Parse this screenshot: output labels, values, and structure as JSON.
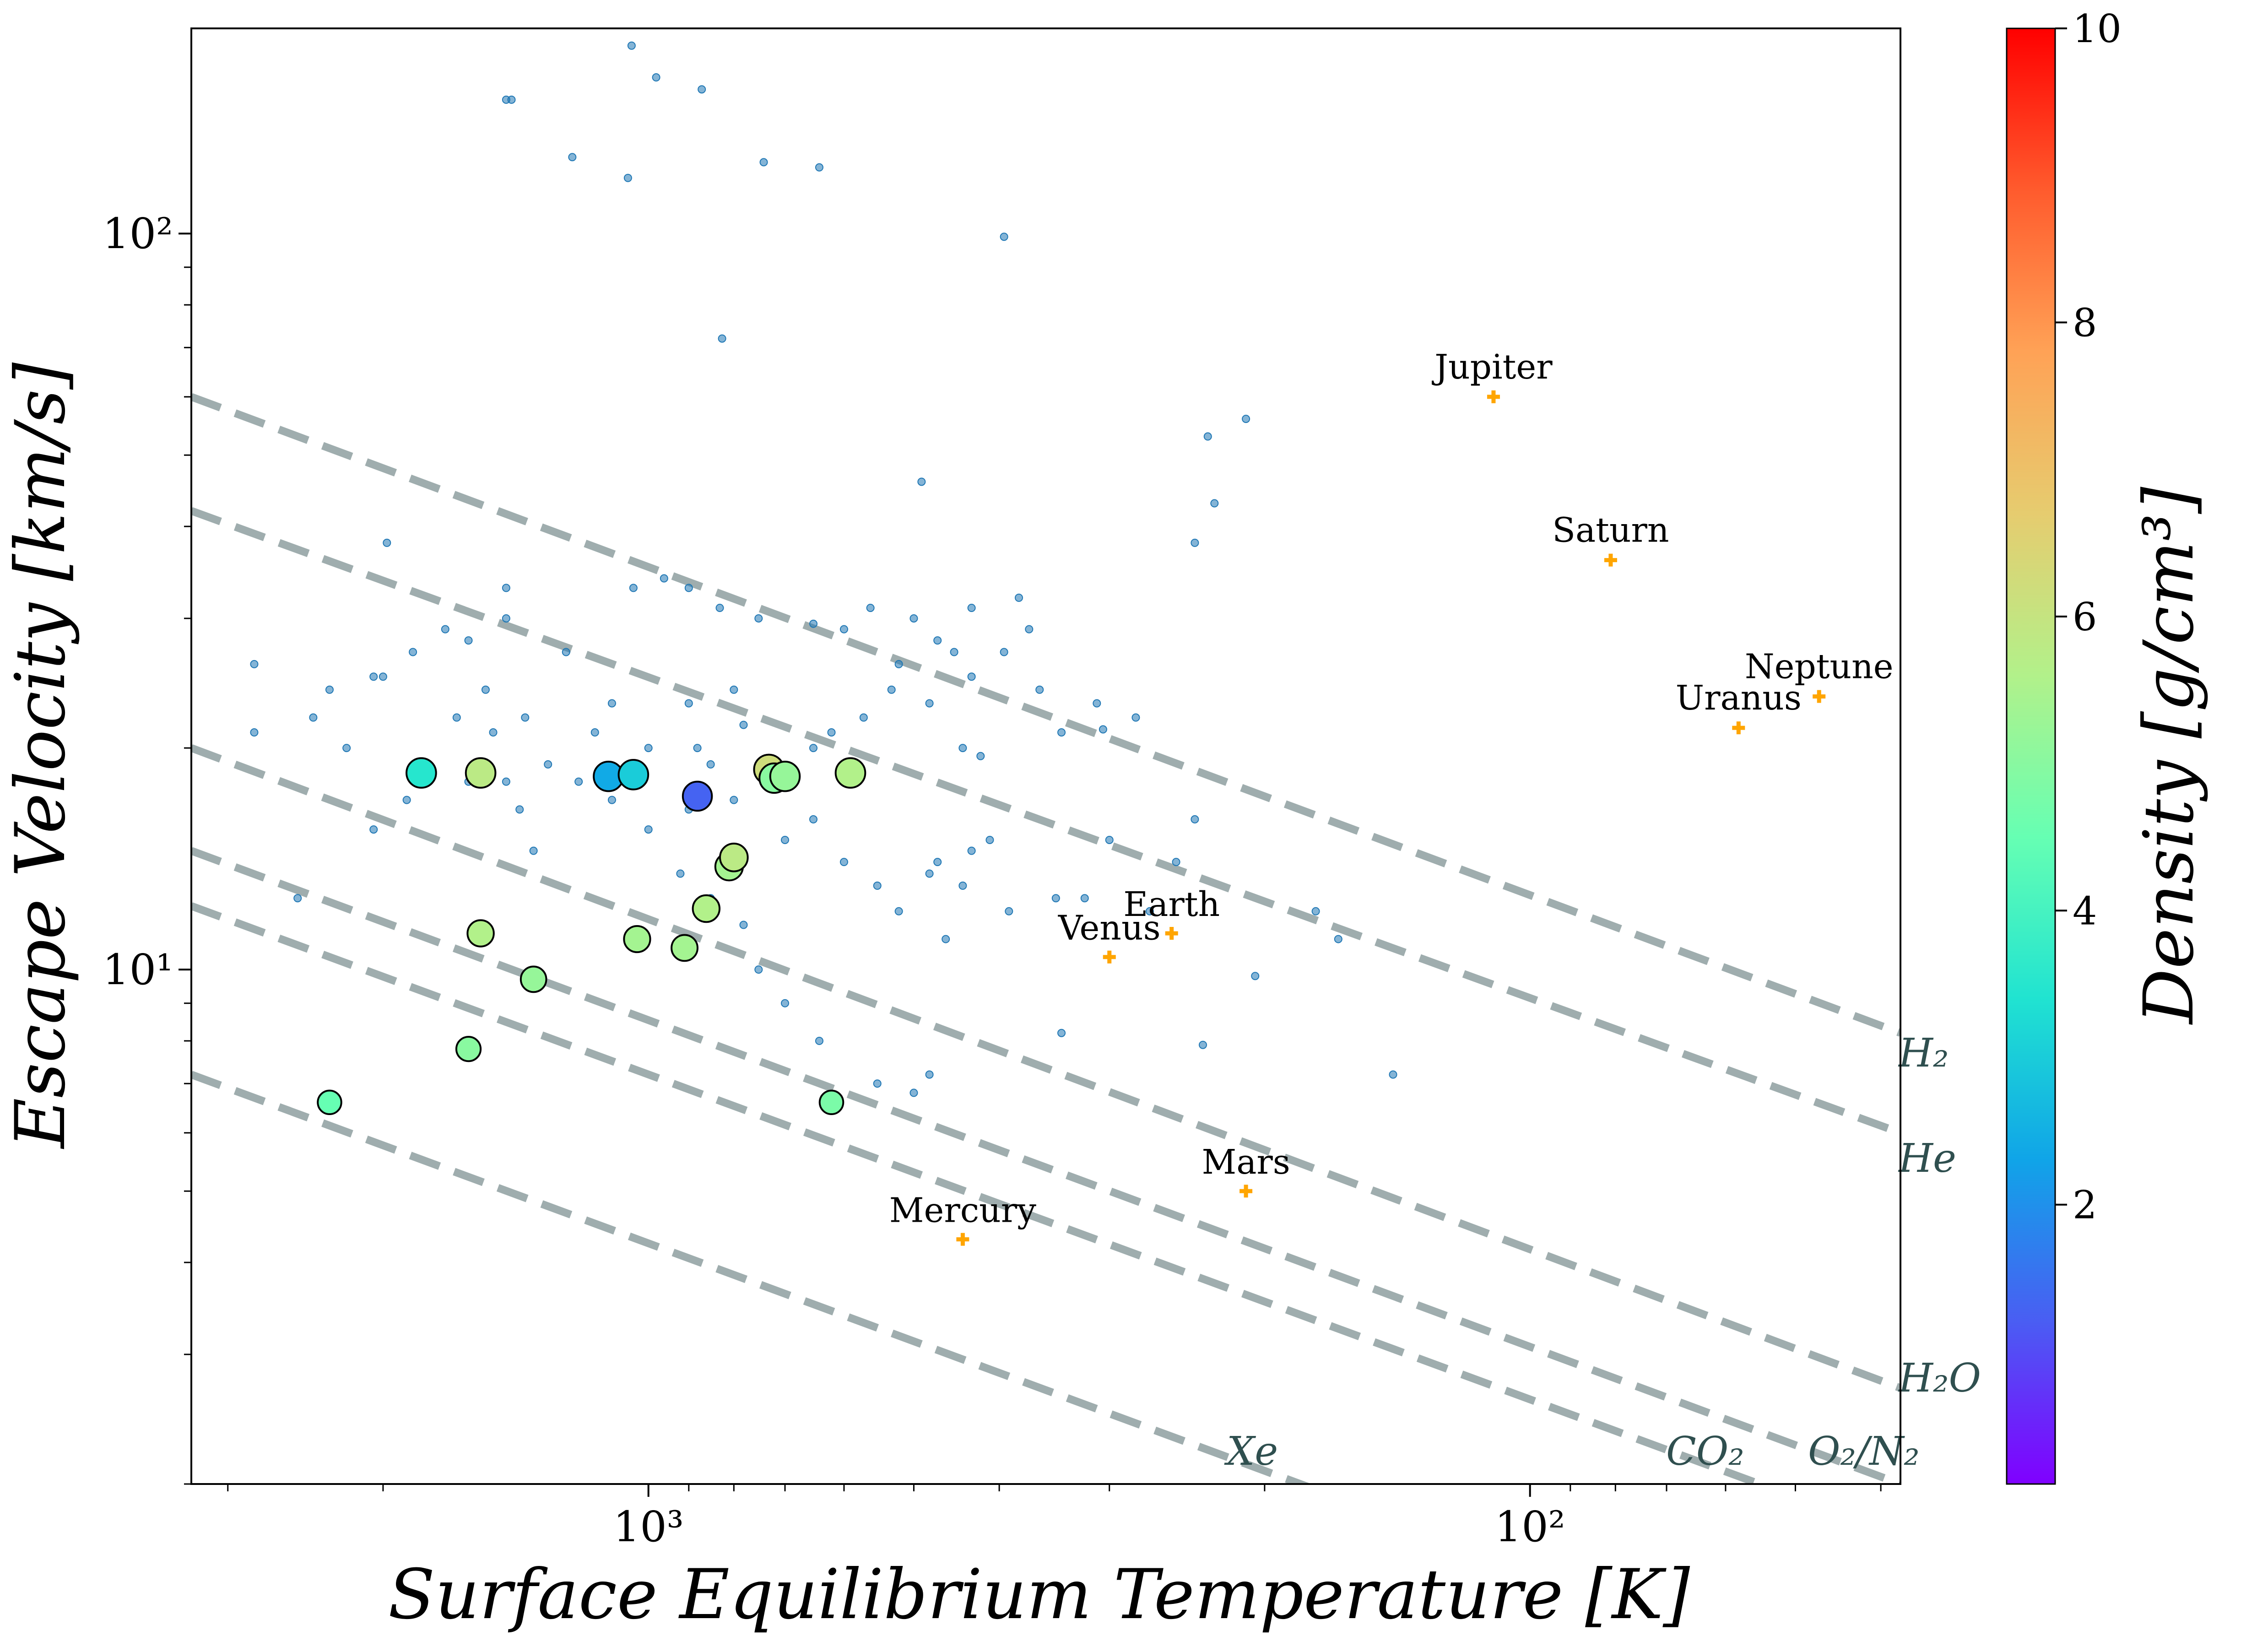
{
  "chart_data": {
    "type": "scatter",
    "xscale": "log",
    "yscale": "log",
    "x_inverted": true,
    "xlim": [
      3300,
      38
    ],
    "ylim": [
      2,
      190
    ],
    "xlabel": "Surface Equilibrium Temperature [K]",
    "ylabel": "Escape Velocity [km/s]",
    "x_ticks": [
      {
        "value": 1000,
        "label": "10³"
      },
      {
        "value": 100,
        "label": "10²"
      }
    ],
    "y_ticks": [
      {
        "value": 10,
        "label": "10¹"
      },
      {
        "value": 100,
        "label": "10²"
      }
    ],
    "colorbar": {
      "label": "Density [g/cm³]",
      "range": [
        0.1,
        10
      ],
      "ticks": [
        {
          "value": 2,
          "label": "2"
        },
        {
          "value": 4,
          "label": "4"
        },
        {
          "value": 6,
          "label": "6"
        },
        {
          "value": 8,
          "label": "8"
        },
        {
          "value": 10,
          "label": "10"
        }
      ],
      "colormap_stops": [
        "#8000ff",
        "#4a5df3",
        "#10a4e8",
        "#20e3d1",
        "#66ffb3",
        "#b2f18a",
        "#e6cc6f",
        "#ffa256",
        "#ff5b2d",
        "#ff0000"
      ]
    },
    "grid": false,
    "retention_lines": {
      "color": "#95a5a6",
      "style": "dashed",
      "series": [
        {
          "name": "H₂",
          "x": [
            3300,
            38
          ],
          "y": [
            60,
            8.2
          ]
        },
        {
          "name": "He",
          "x": [
            3300,
            38
          ],
          "y": [
            42,
            6
          ]
        },
        {
          "name": "H₂O",
          "x": [
            3300,
            38
          ],
          "y": [
            20,
            2.7
          ]
        },
        {
          "name": "CO₂",
          "x": [
            3300,
            38
          ],
          "y": [
            14.5,
            2
          ]
        },
        {
          "name": "O₂/N₂",
          "x": [
            3300,
            38
          ],
          "y": [
            12.2,
            1.7
          ]
        },
        {
          "name": "Xe",
          "x": [
            3300,
            38
          ],
          "y": [
            7.2,
            1
          ]
        }
      ]
    },
    "solar_system": {
      "color": "#ffa500",
      "marker": "plus",
      "points": [
        {
          "name": "Mercury",
          "x": 440,
          "y": 4.3
        },
        {
          "name": "Venus",
          "x": 300,
          "y": 10.4
        },
        {
          "name": "Earth",
          "x": 255,
          "y": 11.2
        },
        {
          "name": "Mars",
          "x": 210,
          "y": 5.0
        },
        {
          "name": "Jupiter",
          "x": 110,
          "y": 60
        },
        {
          "name": "Saturn",
          "x": 81,
          "y": 36
        },
        {
          "name": "Uranus",
          "x": 58,
          "y": 21.3
        },
        {
          "name": "Neptune",
          "x": 47,
          "y": 23.5
        }
      ]
    },
    "exoplanets_small": {
      "color": "#1f77b4",
      "points": [
        {
          "x": 1450,
          "y": 152
        },
        {
          "x": 1430,
          "y": 152
        },
        {
          "x": 1045,
          "y": 180
        },
        {
          "x": 980,
          "y": 163
        },
        {
          "x": 870,
          "y": 157
        },
        {
          "x": 1220,
          "y": 127
        },
        {
          "x": 1055,
          "y": 119
        },
        {
          "x": 740,
          "y": 125
        },
        {
          "x": 640,
          "y": 123
        },
        {
          "x": 395,
          "y": 99
        },
        {
          "x": 825,
          "y": 72
        },
        {
          "x": 210,
          "y": 56
        },
        {
          "x": 232,
          "y": 53
        },
        {
          "x": 228,
          "y": 43
        },
        {
          "x": 240,
          "y": 38
        },
        {
          "x": 490,
          "y": 46
        },
        {
          "x": 1980,
          "y": 38
        },
        {
          "x": 1040,
          "y": 33
        },
        {
          "x": 1450,
          "y": 33
        },
        {
          "x": 1240,
          "y": 27
        },
        {
          "x": 1700,
          "y": 29
        },
        {
          "x": 2800,
          "y": 26
        },
        {
          "x": 2800,
          "y": 21
        },
        {
          "x": 2400,
          "y": 22
        },
        {
          "x": 2000,
          "y": 25
        },
        {
          "x": 1530,
          "y": 24
        },
        {
          "x": 1380,
          "y": 22
        },
        {
          "x": 1300,
          "y": 19
        },
        {
          "x": 1150,
          "y": 21
        },
        {
          "x": 1100,
          "y": 23
        },
        {
          "x": 900,
          "y": 23
        },
        {
          "x": 800,
          "y": 24
        },
        {
          "x": 880,
          "y": 20
        },
        {
          "x": 1000,
          "y": 20
        },
        {
          "x": 1050,
          "y": 19
        },
        {
          "x": 850,
          "y": 19
        },
        {
          "x": 780,
          "y": 21.5
        },
        {
          "x": 700,
          "y": 18
        },
        {
          "x": 650,
          "y": 20
        },
        {
          "x": 620,
          "y": 21
        },
        {
          "x": 600,
          "y": 19
        },
        {
          "x": 570,
          "y": 22
        },
        {
          "x": 530,
          "y": 24
        },
        {
          "x": 520,
          "y": 26
        },
        {
          "x": 500,
          "y": 30
        },
        {
          "x": 470,
          "y": 28
        },
        {
          "x": 450,
          "y": 27
        },
        {
          "x": 430,
          "y": 25
        },
        {
          "x": 480,
          "y": 23
        },
        {
          "x": 440,
          "y": 20
        },
        {
          "x": 420,
          "y": 19.5
        },
        {
          "x": 360,
          "y": 24
        },
        {
          "x": 340,
          "y": 21
        },
        {
          "x": 310,
          "y": 23
        },
        {
          "x": 305,
          "y": 21.2
        },
        {
          "x": 280,
          "y": 22
        },
        {
          "x": 370,
          "y": 29
        },
        {
          "x": 395,
          "y": 27
        },
        {
          "x": 430,
          "y": 31
        },
        {
          "x": 380,
          "y": 32
        },
        {
          "x": 560,
          "y": 31
        },
        {
          "x": 600,
          "y": 29
        },
        {
          "x": 650,
          "y": 29.5
        },
        {
          "x": 750,
          "y": 30
        },
        {
          "x": 830,
          "y": 31
        },
        {
          "x": 900,
          "y": 33
        },
        {
          "x": 960,
          "y": 34
        },
        {
          "x": 1450,
          "y": 30
        },
        {
          "x": 1600,
          "y": 28
        },
        {
          "x": 1850,
          "y": 27
        },
        {
          "x": 2050,
          "y": 25
        },
        {
          "x": 2300,
          "y": 24
        },
        {
          "x": 2200,
          "y": 20
        },
        {
          "x": 1880,
          "y": 17
        },
        {
          "x": 1200,
          "y": 18
        },
        {
          "x": 1100,
          "y": 17
        },
        {
          "x": 900,
          "y": 16.5
        },
        {
          "x": 800,
          "y": 17
        },
        {
          "x": 700,
          "y": 15
        },
        {
          "x": 650,
          "y": 16
        },
        {
          "x": 600,
          "y": 14
        },
        {
          "x": 550,
          "y": 13
        },
        {
          "x": 520,
          "y": 12
        },
        {
          "x": 460,
          "y": 11
        },
        {
          "x": 480,
          "y": 13.5
        },
        {
          "x": 470,
          "y": 14
        },
        {
          "x": 430,
          "y": 14.5
        },
        {
          "x": 440,
          "y": 13
        },
        {
          "x": 410,
          "y": 15
        },
        {
          "x": 390,
          "y": 12
        },
        {
          "x": 345,
          "y": 12.5
        },
        {
          "x": 320,
          "y": 12.5
        },
        {
          "x": 300,
          "y": 15
        },
        {
          "x": 270,
          "y": 12
        },
        {
          "x": 252,
          "y": 14
        },
        {
          "x": 240,
          "y": 16
        },
        {
          "x": 1000,
          "y": 15.5
        },
        {
          "x": 920,
          "y": 13.5
        },
        {
          "x": 850,
          "y": 12.5
        },
        {
          "x": 780,
          "y": 11.5
        },
        {
          "x": 750,
          "y": 10
        },
        {
          "x": 700,
          "y": 9
        },
        {
          "x": 640,
          "y": 8
        },
        {
          "x": 550,
          "y": 7
        },
        {
          "x": 500,
          "y": 6.8
        },
        {
          "x": 480,
          "y": 7.2
        },
        {
          "x": 340,
          "y": 8.2
        },
        {
          "x": 235,
          "y": 7.9
        },
        {
          "x": 205,
          "y": 9.8
        },
        {
          "x": 165,
          "y": 11
        },
        {
          "x": 175,
          "y": 12
        },
        {
          "x": 143,
          "y": 7.2
        },
        {
          "x": 2500,
          "y": 12.5
        },
        {
          "x": 2050,
          "y": 15.5
        },
        {
          "x": 1600,
          "y": 18
        },
        {
          "x": 1450,
          "y": 18
        },
        {
          "x": 1500,
          "y": 21
        },
        {
          "x": 1650,
          "y": 22
        },
        {
          "x": 1400,
          "y": 16.5
        },
        {
          "x": 1350,
          "y": 14.5
        }
      ]
    },
    "exoplanets_measured": {
      "points": [
        {
          "x": 2300,
          "y": 6.6,
          "density": 4.5
        },
        {
          "x": 1600,
          "y": 7.8,
          "density": 5.0
        },
        {
          "x": 1550,
          "y": 11.2,
          "density": 5.6
        },
        {
          "x": 1350,
          "y": 9.7,
          "density": 5.2
        },
        {
          "x": 1030,
          "y": 11,
          "density": 5.4
        },
        {
          "x": 910,
          "y": 10.7,
          "density": 5.4
        },
        {
          "x": 860,
          "y": 12.1,
          "density": 5.6
        },
        {
          "x": 810,
          "y": 13.8,
          "density": 5.4
        },
        {
          "x": 800,
          "y": 14.2,
          "density": 5.8
        },
        {
          "x": 620,
          "y": 6.6,
          "density": 4.8
        },
        {
          "x": 1810,
          "y": 18.5,
          "density": 3.5
        },
        {
          "x": 1550,
          "y": 18.5,
          "density": 5.8
        },
        {
          "x": 1110,
          "y": 18.3,
          "density": 2.4
        },
        {
          "x": 1040,
          "y": 18.4,
          "density": 3.0
        },
        {
          "x": 880,
          "y": 17.2,
          "density": 1.3
        },
        {
          "x": 730,
          "y": 18.7,
          "density": 6.2
        },
        {
          "x": 720,
          "y": 18.2,
          "density": 5.0
        },
        {
          "x": 700,
          "y": 18.3,
          "density": 5.2
        },
        {
          "x": 590,
          "y": 18.5,
          "density": 5.6
        }
      ]
    }
  }
}
